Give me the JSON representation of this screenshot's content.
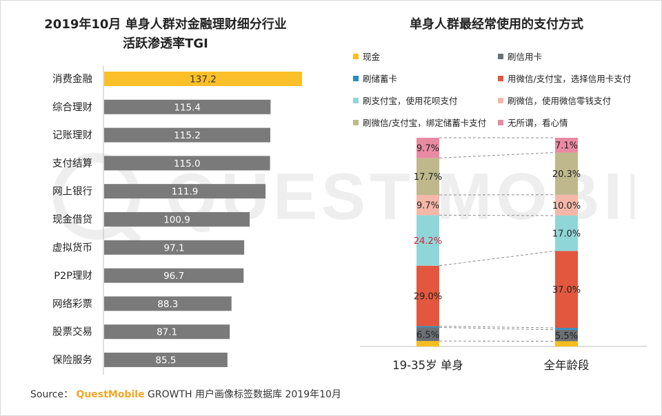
{
  "colors": {
    "highlight": "#fbbf2a",
    "bar": "#7a7a7a",
    "brand": "#f5a623",
    "watermark": "#eeeeee"
  },
  "watermark_text": "QUEST MOBILE",
  "source": {
    "prefix": "Source：",
    "brand": "QuestMobile",
    "text": " GROWTH 用户画像标签数据库 2019年10月"
  },
  "chart_data": [
    {
      "type": "bar",
      "orientation": "horizontal",
      "title_line1": "2019年10月 单身人群对金融理财细分行业",
      "title_line2": "活跃渗透率TGI",
      "categories": [
        "消费金融",
        "综合理财",
        "记账理财",
        "支付结算",
        "网上银行",
        "现金借贷",
        "虚拟货币",
        "P2P理财",
        "网络彩票",
        "股票交易",
        "保险服务"
      ],
      "values": [
        137.2,
        115.4,
        115.2,
        115.0,
        111.9,
        100.9,
        97.1,
        96.7,
        88.3,
        87.1,
        85.5
      ],
      "value_labels": [
        "137.2",
        "115.4",
        "115.2",
        "115.0",
        "111.9",
        "100.9",
        "97.1",
        "96.7",
        "88.3",
        "87.1",
        "85.5"
      ],
      "highlight_index": 0,
      "xlim": [
        0,
        140
      ]
    },
    {
      "type": "bar",
      "stacked": true,
      "percent": true,
      "title": "单身人群最经常使用的支付方式",
      "categories": [
        "19-35岁 单身",
        "全年龄段"
      ],
      "series": [
        {
          "name": "现金",
          "color": "#f7bd1e",
          "values": [
            2.6,
            2.5
          ],
          "labels": [
            "",
            ""
          ]
        },
        {
          "name": "刷信用卡",
          "color": "#6b7075",
          "values": [
            6.5,
            5.5
          ],
          "labels": [
            "6.5%",
            "5.5%"
          ]
        },
        {
          "name": "刷储蓄卡",
          "color": "#2a8bc2",
          "values": [
            0.6,
            0.9
          ],
          "labels": [
            "",
            ""
          ]
        },
        {
          "name": "用微信/支付宝，选择信用卡支付",
          "color": "#e2573e",
          "values": [
            29.0,
            37.0
          ],
          "labels": [
            "29.0%",
            "37.0%"
          ]
        },
        {
          "name": "刷支付宝，使用花呗支付",
          "color": "#8fd6d8",
          "values": [
            24.2,
            17.0
          ],
          "labels": [
            "24.2%",
            "17.0%"
          ]
        },
        {
          "name": "刷微信，使用微信零钱支付",
          "color": "#f5b7a8",
          "values": [
            9.7,
            10.0
          ],
          "labels": [
            "9.7%",
            "10.0%"
          ]
        },
        {
          "name": "刷微信/支付宝，绑定储蓄卡支付",
          "color": "#bfb88c",
          "values": [
            17.7,
            20.3
          ],
          "labels": [
            "17.7%",
            "20.3%"
          ]
        },
        {
          "name": "无所谓，看心情",
          "color": "#e98aa3",
          "values": [
            9.7,
            7.1
          ],
          "labels": [
            "9.7%",
            "7.1%"
          ]
        }
      ],
      "emphasis_label": "24.2%",
      "emphasis_color": "#d6223a",
      "legend": {
        "placement": "top",
        "columns": 2,
        "order": [
          "现金",
          "刷信用卡",
          "刷储蓄卡",
          "用微信/支付宝，选择信用卡支付",
          "刷支付宝，使用花呗支付",
          "刷微信，使用微信零钱支付",
          "刷微信/支付宝，绑定储蓄卡支付",
          "无所谓，看心情"
        ]
      },
      "ylim": [
        0,
        100
      ]
    }
  ]
}
